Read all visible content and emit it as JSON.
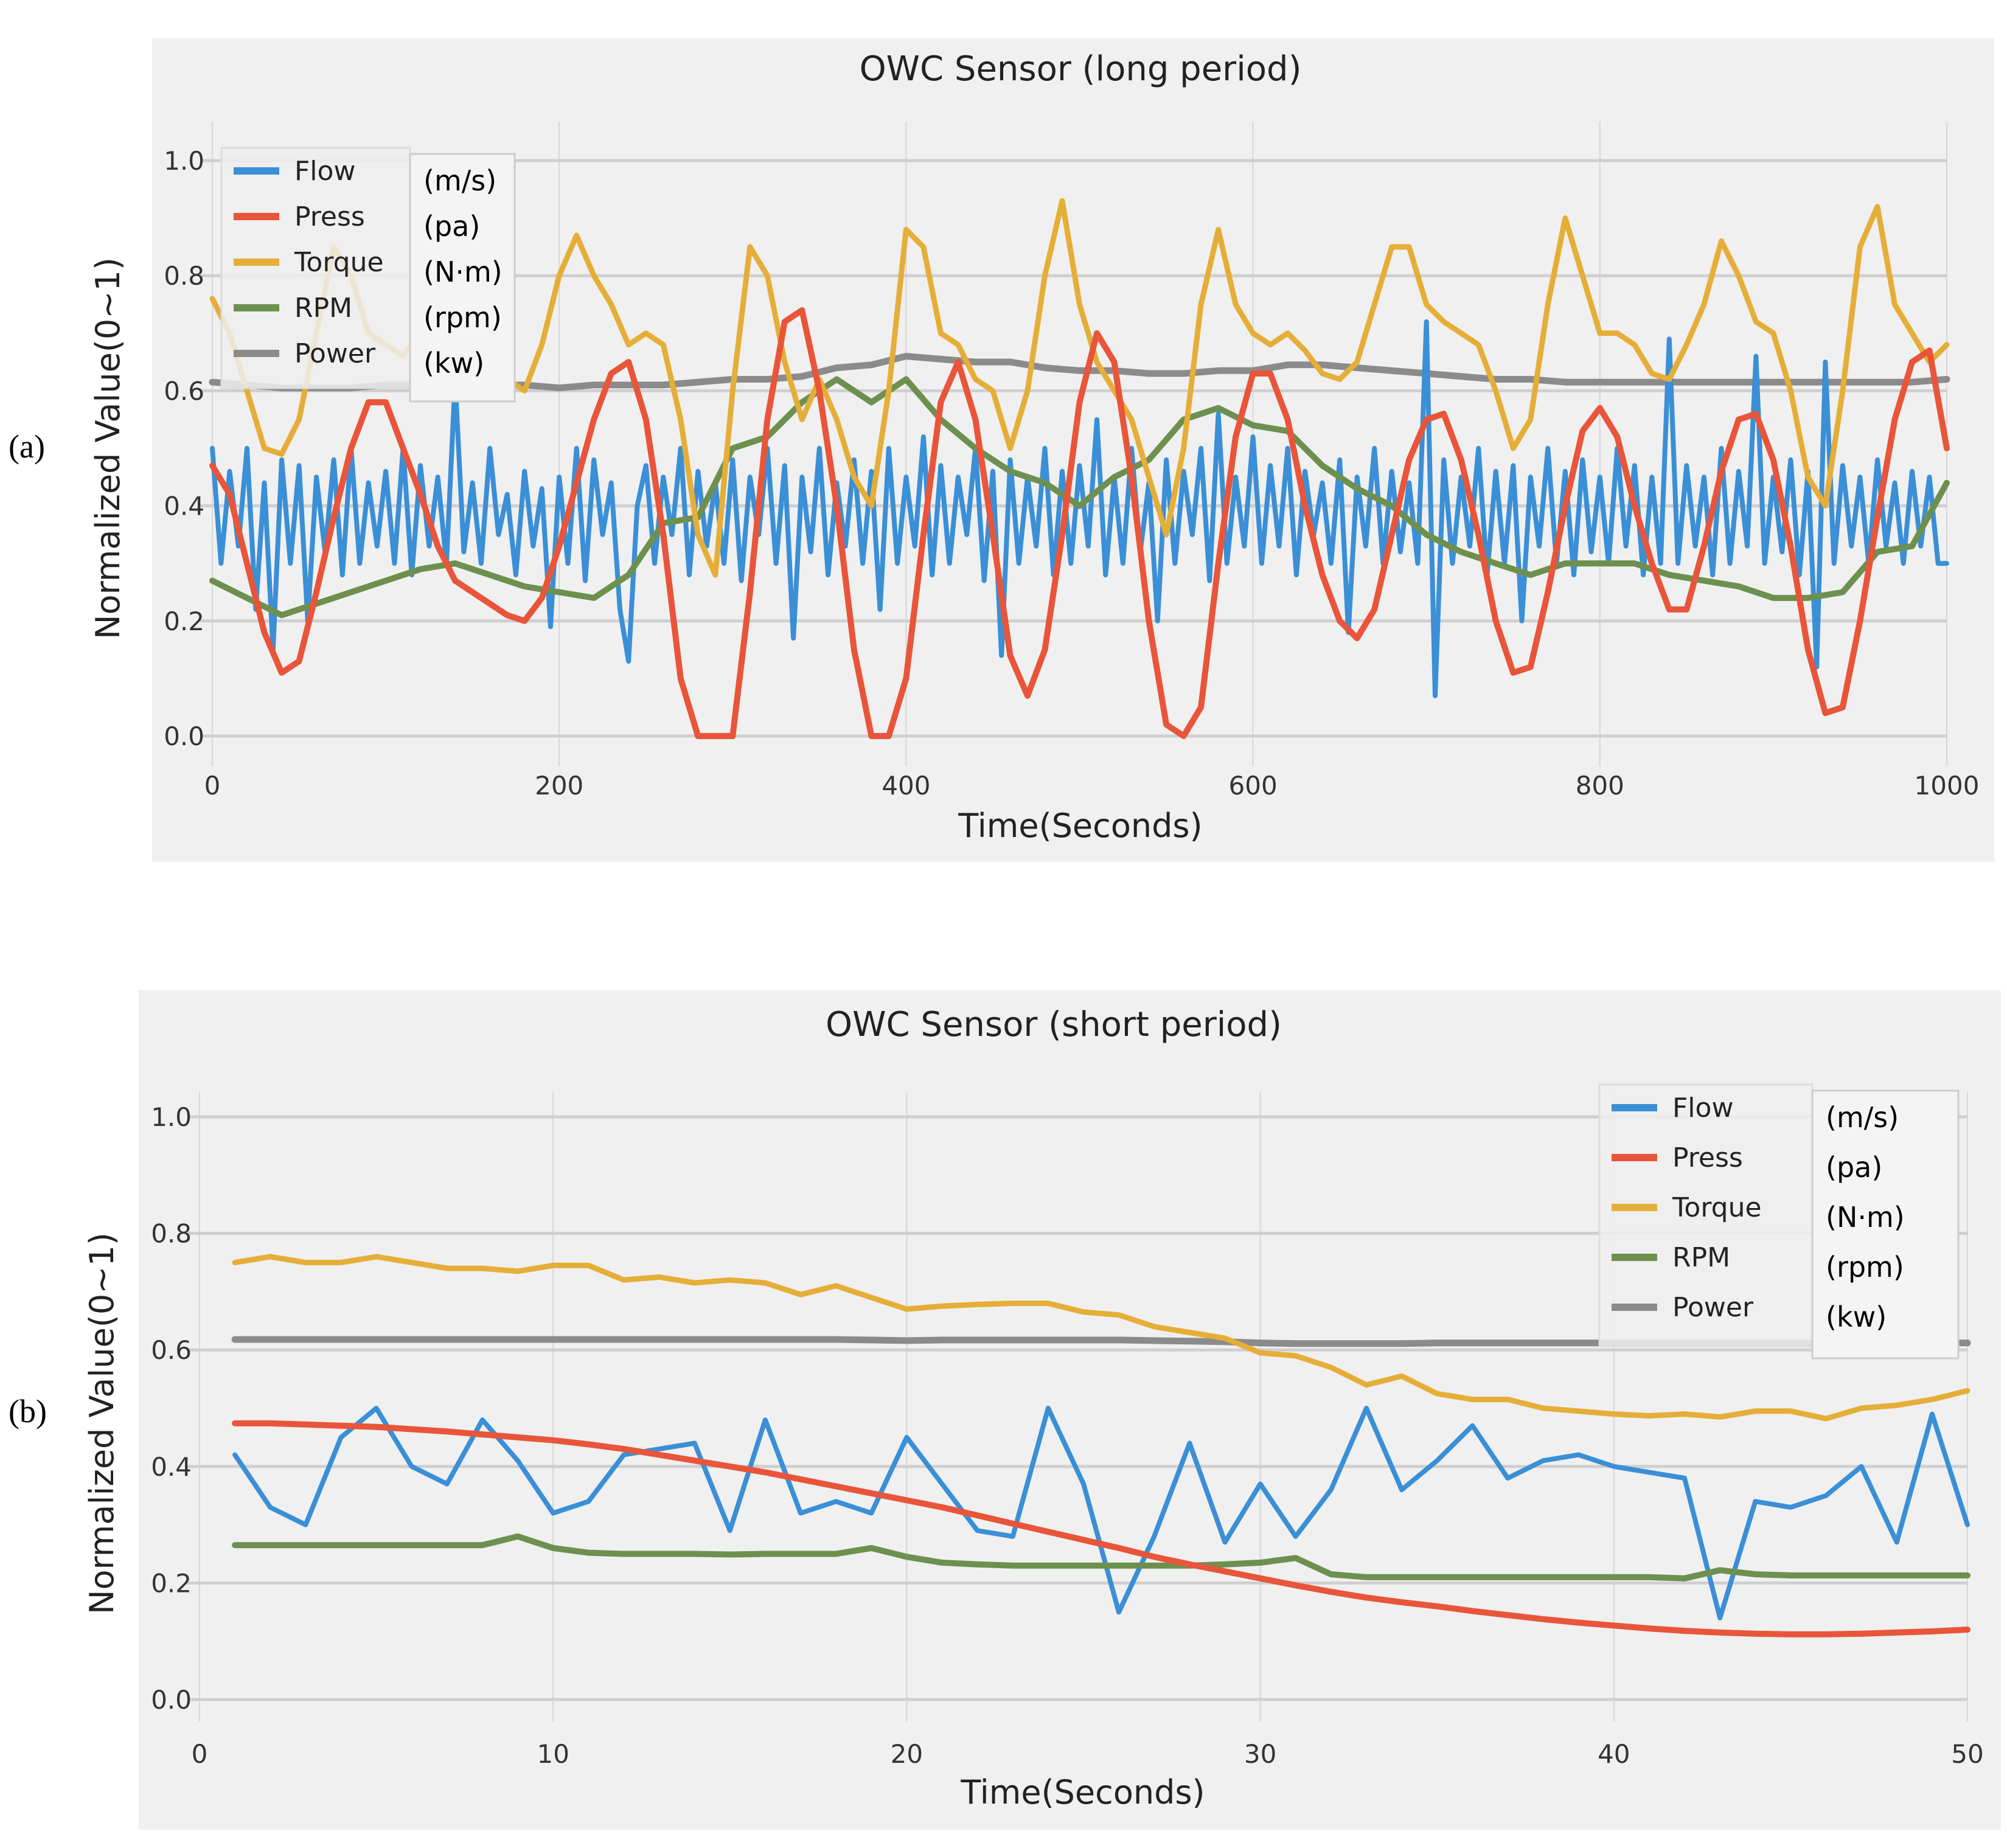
{
  "chart_data": [
    {
      "id": "a",
      "panel_label": "(a)",
      "type": "line",
      "title": "OWC Sensor (long period)",
      "xlabel": "Time(Seconds)",
      "ylabel": "Normalized Value(0~1)",
      "xlim": [
        0,
        1000
      ],
      "ylim": [
        0,
        1.0
      ],
      "xticks": [
        0,
        200,
        400,
        600,
        800,
        1000
      ],
      "xtick_labels": [
        "0",
        "200",
        "400",
        "600",
        "800",
        "1000"
      ],
      "yticks": [
        0,
        0.2,
        0.4,
        0.6,
        0.8,
        1.0
      ],
      "ytick_labels": [
        "0.0",
        "0.2",
        "0.4",
        "0.6",
        "0.8",
        "1.0"
      ],
      "grid": true,
      "legend_position": "top-left",
      "series": [
        {
          "name": "Flow",
          "unit": "(m/s)",
          "color": "#3a8fd6",
          "x_start": 0,
          "x_step": 5,
          "values": [
            0.5,
            0.3,
            0.46,
            0.33,
            0.5,
            0.22,
            0.44,
            0.15,
            0.48,
            0.3,
            0.47,
            0.2,
            0.45,
            0.32,
            0.48,
            0.28,
            0.5,
            0.3,
            0.44,
            0.33,
            0.46,
            0.3,
            0.5,
            0.28,
            0.47,
            0.33,
            0.45,
            0.3,
            0.62,
            0.32,
            0.44,
            0.3,
            0.5,
            0.35,
            0.42,
            0.28,
            0.46,
            0.33,
            0.43,
            0.19,
            0.45,
            0.3,
            0.5,
            0.27,
            0.48,
            0.35,
            0.44,
            0.22,
            0.13,
            0.4,
            0.47,
            0.3,
            0.45,
            0.35,
            0.5,
            0.28,
            0.46,
            0.33,
            0.44,
            0.3,
            0.48,
            0.27,
            0.45,
            0.35,
            0.5,
            0.3,
            0.47,
            0.17,
            0.45,
            0.32,
            0.5,
            0.28,
            0.44,
            0.33,
            0.48,
            0.3,
            0.46,
            0.22,
            0.5,
            0.3,
            0.45,
            0.33,
            0.52,
            0.28,
            0.47,
            0.3,
            0.45,
            0.35,
            0.5,
            0.27,
            0.46,
            0.14,
            0.48,
            0.3,
            0.45,
            0.33,
            0.5,
            0.28,
            0.46,
            0.3,
            0.47,
            0.33,
            0.55,
            0.28,
            0.45,
            0.3,
            0.5,
            0.32,
            0.44,
            0.2,
            0.48,
            0.3,
            0.46,
            0.35,
            0.5,
            0.27,
            0.56,
            0.3,
            0.45,
            0.33,
            0.52,
            0.3,
            0.47,
            0.33,
            0.5,
            0.28,
            0.46,
            0.35,
            0.44,
            0.3,
            0.48,
            0.18,
            0.45,
            0.33,
            0.5,
            0.3,
            0.46,
            0.32,
            0.44,
            0.3,
            0.72,
            0.07,
            0.48,
            0.3,
            0.45,
            0.33,
            0.5,
            0.28,
            0.46,
            0.3,
            0.47,
            0.2,
            0.45,
            0.33,
            0.5,
            0.3,
            0.46,
            0.28,
            0.48,
            0.32,
            0.45,
            0.3,
            0.5,
            0.33,
            0.47,
            0.28,
            0.45,
            0.3,
            0.69,
            0.3,
            0.47,
            0.33,
            0.45,
            0.28,
            0.5,
            0.3,
            0.46,
            0.33,
            0.66,
            0.3,
            0.45,
            0.32,
            0.48,
            0.28,
            0.46,
            0.12,
            0.65,
            0.3,
            0.47,
            0.33,
            0.45,
            0.3,
            0.48,
            0.33,
            0.44,
            0.3,
            0.46,
            0.33,
            0.45,
            0.3,
            0.3
          ]
        },
        {
          "name": "Press",
          "unit": "(pa)",
          "color": "#e8553a",
          "x_start": 0,
          "x_step": 10,
          "values": [
            0.47,
            0.42,
            0.3,
            0.18,
            0.11,
            0.13,
            0.25,
            0.38,
            0.5,
            0.58,
            0.58,
            0.5,
            0.42,
            0.33,
            0.27,
            0.25,
            0.23,
            0.21,
            0.2,
            0.24,
            0.33,
            0.44,
            0.55,
            0.63,
            0.65,
            0.55,
            0.35,
            0.1,
            0,
            0,
            0,
            0.25,
            0.55,
            0.72,
            0.74,
            0.6,
            0.4,
            0.15,
            0,
            0,
            0.1,
            0.35,
            0.58,
            0.65,
            0.55,
            0.35,
            0.14,
            0.07,
            0.15,
            0.35,
            0.58,
            0.7,
            0.65,
            0.45,
            0.2,
            0.02,
            0,
            0.05,
            0.3,
            0.52,
            0.63,
            0.63,
            0.55,
            0.4,
            0.28,
            0.2,
            0.17,
            0.22,
            0.35,
            0.48,
            0.55,
            0.56,
            0.48,
            0.35,
            0.2,
            0.11,
            0.12,
            0.25,
            0.4,
            0.53,
            0.57,
            0.52,
            0.4,
            0.3,
            0.22,
            0.22,
            0.33,
            0.46,
            0.55,
            0.56,
            0.48,
            0.33,
            0.15,
            0.04,
            0.05,
            0.2,
            0.38,
            0.55,
            0.65,
            0.67,
            0.5
          ]
        },
        {
          "name": "Torque",
          "unit": "(N·m)",
          "color": "#e5ae38",
          "x_start": 0,
          "x_step": 10,
          "values": [
            0.76,
            0.7,
            0.6,
            0.5,
            0.49,
            0.55,
            0.7,
            0.85,
            0.8,
            0.7,
            0.68,
            0.66,
            0.7,
            0.64,
            0.62,
            0.65,
            0.63,
            0.62,
            0.6,
            0.68,
            0.8,
            0.87,
            0.8,
            0.75,
            0.68,
            0.7,
            0.68,
            0.55,
            0.35,
            0.28,
            0.6,
            0.85,
            0.8,
            0.65,
            0.55,
            0.62,
            0.55,
            0.45,
            0.4,
            0.6,
            0.88,
            0.85,
            0.7,
            0.68,
            0.62,
            0.6,
            0.5,
            0.6,
            0.8,
            0.93,
            0.75,
            0.65,
            0.6,
            0.55,
            0.45,
            0.35,
            0.5,
            0.75,
            0.88,
            0.75,
            0.7,
            0.68,
            0.7,
            0.67,
            0.63,
            0.62,
            0.65,
            0.75,
            0.85,
            0.85,
            0.75,
            0.72,
            0.7,
            0.68,
            0.6,
            0.5,
            0.55,
            0.75,
            0.9,
            0.8,
            0.7,
            0.7,
            0.68,
            0.63,
            0.62,
            0.68,
            0.75,
            0.86,
            0.8,
            0.72,
            0.7,
            0.6,
            0.45,
            0.4,
            0.6,
            0.85,
            0.92,
            0.75,
            0.7,
            0.65,
            0.68
          ]
        },
        {
          "name": "RPM",
          "unit": "(rpm)",
          "color": "#6d904f",
          "x_start": 0,
          "x_step": 20,
          "values": [
            0.27,
            0.24,
            0.21,
            0.23,
            0.25,
            0.27,
            0.29,
            0.3,
            0.28,
            0.26,
            0.25,
            0.24,
            0.28,
            0.37,
            0.38,
            0.5,
            0.52,
            0.58,
            0.62,
            0.58,
            0.62,
            0.55,
            0.5,
            0.46,
            0.44,
            0.4,
            0.45,
            0.48,
            0.55,
            0.57,
            0.54,
            0.53,
            0.47,
            0.43,
            0.4,
            0.35,
            0.32,
            0.3,
            0.28,
            0.3,
            0.3,
            0.3,
            0.28,
            0.27,
            0.26,
            0.24,
            0.24,
            0.25,
            0.32,
            0.33,
            0.44
          ]
        },
        {
          "name": "Power",
          "unit": "(kw)",
          "color": "#8b8b8b",
          "x_start": 0,
          "x_step": 20,
          "values": [
            0.615,
            0.61,
            0.605,
            0.605,
            0.605,
            0.61,
            0.61,
            0.61,
            0.61,
            0.61,
            0.605,
            0.61,
            0.61,
            0.61,
            0.615,
            0.62,
            0.62,
            0.625,
            0.64,
            0.645,
            0.66,
            0.655,
            0.65,
            0.65,
            0.64,
            0.635,
            0.635,
            0.63,
            0.63,
            0.635,
            0.635,
            0.645,
            0.645,
            0.64,
            0.635,
            0.63,
            0.625,
            0.62,
            0.62,
            0.615,
            0.615,
            0.615,
            0.615,
            0.615,
            0.615,
            0.615,
            0.615,
            0.615,
            0.615,
            0.615,
            0.62
          ]
        }
      ]
    },
    {
      "id": "b",
      "panel_label": "(b)",
      "type": "line",
      "title": "OWC Sensor (short period)",
      "xlabel": "Time(Seconds)",
      "ylabel": "Normalized Value(0~1)",
      "xlim": [
        0,
        50
      ],
      "ylim": [
        0,
        1.0
      ],
      "xticks": [
        0,
        10,
        20,
        30,
        40,
        50
      ],
      "xtick_labels": [
        "0",
        "10",
        "20",
        "30",
        "40",
        "50"
      ],
      "yticks": [
        0,
        0.2,
        0.4,
        0.6,
        0.8,
        1.0
      ],
      "ytick_labels": [
        "0.0",
        "0.2",
        "0.4",
        "0.6",
        "0.8",
        "1.0"
      ],
      "grid": true,
      "legend_position": "top-right",
      "series": [
        {
          "name": "Flow",
          "unit": "(m/s)",
          "color": "#3a8fd6",
          "x_start": 1,
          "x_step": 1,
          "values": [
            0.42,
            0.33,
            0.3,
            0.45,
            0.5,
            0.4,
            0.37,
            0.48,
            0.41,
            0.32,
            0.34,
            0.42,
            0.43,
            0.44,
            0.29,
            0.48,
            0.32,
            0.34,
            0.32,
            0.45,
            0.37,
            0.29,
            0.28,
            0.5,
            0.37,
            0.15,
            0.28,
            0.44,
            0.27,
            0.37,
            0.28,
            0.36,
            0.5,
            0.36,
            0.41,
            0.47,
            0.38,
            0.41,
            0.42,
            0.4,
            0.39,
            0.38,
            0.14,
            0.34,
            0.33,
            0.35,
            0.4,
            0.27,
            0.49,
            0.3
          ]
        },
        {
          "name": "Press",
          "unit": "(pa)",
          "color": "#e8553a",
          "x_start": 1,
          "x_step": 1,
          "values": [
            0.474,
            0.474,
            0.472,
            0.47,
            0.468,
            0.464,
            0.46,
            0.455,
            0.45,
            0.445,
            0.438,
            0.43,
            0.42,
            0.41,
            0.4,
            0.39,
            0.378,
            0.366,
            0.354,
            0.342,
            0.33,
            0.316,
            0.302,
            0.288,
            0.274,
            0.26,
            0.245,
            0.232,
            0.22,
            0.208,
            0.196,
            0.185,
            0.175,
            0.167,
            0.16,
            0.152,
            0.145,
            0.138,
            0.132,
            0.127,
            0.122,
            0.118,
            0.115,
            0.113,
            0.112,
            0.112,
            0.113,
            0.115,
            0.117,
            0.12
          ]
        },
        {
          "name": "Torque",
          "unit": "(N·m)",
          "color": "#e5ae38",
          "x_start": 1,
          "x_step": 1,
          "values": [
            0.75,
            0.76,
            0.75,
            0.75,
            0.76,
            0.75,
            0.74,
            0.74,
            0.735,
            0.745,
            0.745,
            0.72,
            0.725,
            0.715,
            0.72,
            0.715,
            0.695,
            0.71,
            0.69,
            0.67,
            0.675,
            0.678,
            0.68,
            0.68,
            0.665,
            0.66,
            0.64,
            0.63,
            0.62,
            0.595,
            0.59,
            0.57,
            0.54,
            0.555,
            0.525,
            0.515,
            0.515,
            0.5,
            0.495,
            0.49,
            0.487,
            0.49,
            0.485,
            0.495,
            0.495,
            0.482,
            0.5,
            0.505,
            0.515,
            0.53
          ]
        },
        {
          "name": "RPM",
          "unit": "(rpm)",
          "color": "#6d904f",
          "x_start": 1,
          "x_step": 1,
          "values": [
            0.265,
            0.265,
            0.265,
            0.265,
            0.265,
            0.265,
            0.265,
            0.265,
            0.28,
            0.26,
            0.252,
            0.25,
            0.25,
            0.25,
            0.249,
            0.25,
            0.25,
            0.25,
            0.26,
            0.245,
            0.235,
            0.232,
            0.23,
            0.23,
            0.23,
            0.23,
            0.23,
            0.23,
            0.232,
            0.235,
            0.243,
            0.215,
            0.21,
            0.21,
            0.21,
            0.21,
            0.21,
            0.21,
            0.21,
            0.21,
            0.21,
            0.208,
            0.222,
            0.215,
            0.213,
            0.213,
            0.213,
            0.213,
            0.213,
            0.213
          ]
        },
        {
          "name": "Power",
          "unit": "(kw)",
          "color": "#8b8b8b",
          "x_start": 1,
          "x_step": 1,
          "values": [
            0.618,
            0.618,
            0.618,
            0.618,
            0.618,
            0.618,
            0.618,
            0.618,
            0.618,
            0.618,
            0.618,
            0.618,
            0.618,
            0.618,
            0.618,
            0.618,
            0.618,
            0.618,
            0.617,
            0.616,
            0.617,
            0.617,
            0.617,
            0.617,
            0.617,
            0.617,
            0.616,
            0.615,
            0.614,
            0.612,
            0.611,
            0.611,
            0.611,
            0.611,
            0.612,
            0.612,
            0.612,
            0.612,
            0.612,
            0.612,
            0.612,
            0.612,
            0.612,
            0.612,
            0.612,
            0.612,
            0.612,
            0.612,
            0.612,
            0.612
          ]
        }
      ]
    }
  ]
}
